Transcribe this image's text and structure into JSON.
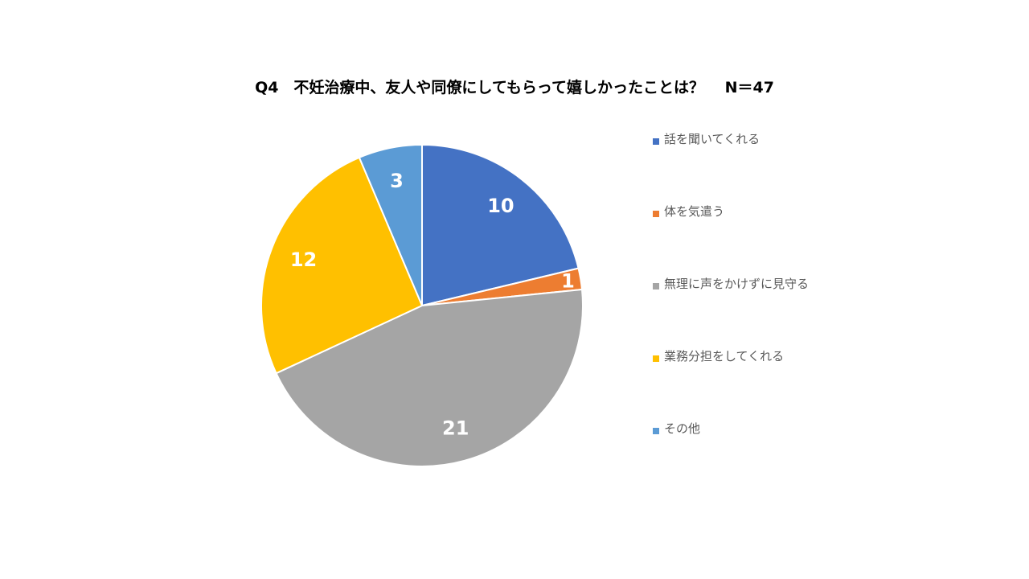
{
  "chart_data": {
    "type": "pie",
    "title": "Q4　不妊治療中、友人や同僚にしてもらって嬉しかったことは？　 N＝47",
    "categories": [
      "話を聞いてくれる",
      "体を気遣う",
      "無理に声をかけずに見守る",
      "業務分担をしてくれる",
      "その他"
    ],
    "values": [
      10,
      1,
      21,
      12,
      3
    ],
    "colors": [
      "#4472C4",
      "#ED7D31",
      "#A5A5A5",
      "#FFC000",
      "#5B9BD5"
    ],
    "data_labels": [
      "10",
      "1",
      "21",
      "12",
      "3"
    ],
    "start_angle_deg": 0,
    "direction": "clockwise",
    "legend_position": "right"
  }
}
